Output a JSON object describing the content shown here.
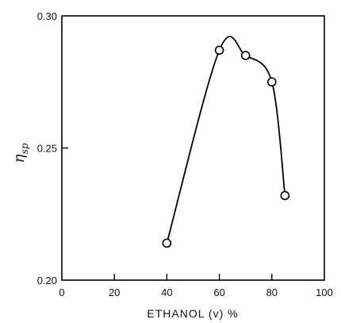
{
  "chart_data": {
    "type": "line",
    "title": "",
    "xlabel": "ETHANOL (v) %",
    "ylabel": "η",
    "ylabel_subscript": "sp",
    "xlim": [
      0,
      100
    ],
    "ylim": [
      0.2,
      0.3
    ],
    "x_ticks": [
      0,
      20,
      40,
      60,
      80,
      100
    ],
    "x_tick_labels": [
      "0",
      "20",
      "40",
      "60",
      "80",
      "100"
    ],
    "y_ticks": [
      0.2,
      0.25,
      0.3
    ],
    "y_tick_labels": [
      "0.20",
      "0.25",
      "0.30"
    ],
    "grid": false,
    "legend": "none",
    "series": [
      {
        "x": [
          40,
          60,
          70,
          80,
          85
        ],
        "values": [
          0.214,
          0.287,
          0.285,
          0.275,
          0.232
        ],
        "marker": "open-circle",
        "line": "smooth"
      }
    ]
  }
}
